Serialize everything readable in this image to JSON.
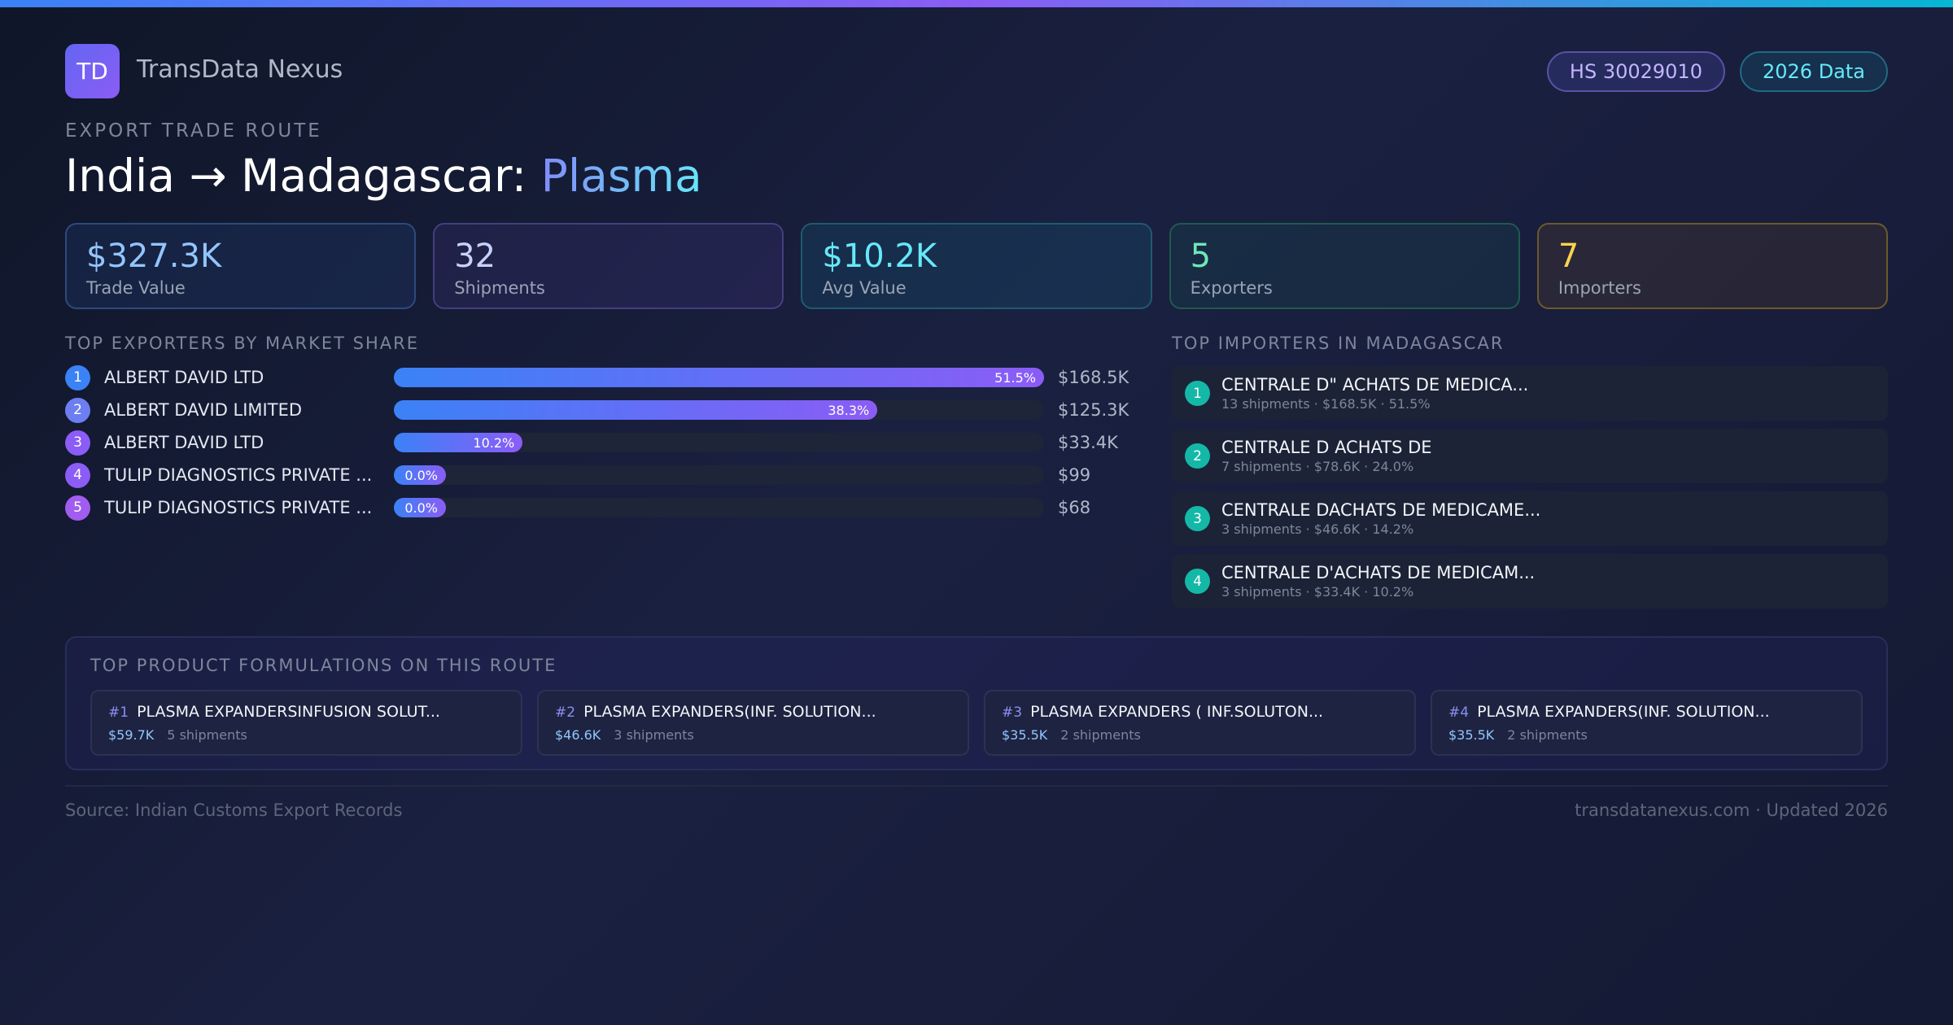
{
  "header": {
    "logo": "TD",
    "brand": "TransData Nexus",
    "badges": [
      "HS 30029010",
      "2026 Data"
    ]
  },
  "route": {
    "eyebrow": "EXPORT TRADE ROUTE",
    "title": "India → Madagascar:",
    "product": "Plasma"
  },
  "kpis": [
    {
      "value": "$327.3K",
      "label": "Trade Value"
    },
    {
      "value": "32",
      "label": "Shipments"
    },
    {
      "value": "$10.2K",
      "label": "Avg Value"
    },
    {
      "value": "5",
      "label": "Exporters"
    },
    {
      "value": "7",
      "label": "Importers"
    }
  ],
  "exporters": {
    "heading": "TOP EXPORTERS BY MARKET SHARE",
    "rows": [
      {
        "rank": "1",
        "name": "ALBERT DAVID LTD",
        "share": 51.5,
        "share_label": "51.5%",
        "value": "$168.5K"
      },
      {
        "rank": "2",
        "name": "ALBERT DAVID LIMITED",
        "share": 38.3,
        "share_label": "38.3%",
        "value": "$125.3K"
      },
      {
        "rank": "3",
        "name": "ALBERT DAVID LTD",
        "share": 10.2,
        "share_label": "10.2%",
        "value": "$33.4K"
      },
      {
        "rank": "4",
        "name": "TULIP DIAGNOSTICS PRIVATE ...",
        "share": 0.0,
        "share_label": "0.0%",
        "value": "$99"
      },
      {
        "rank": "5",
        "name": "TULIP DIAGNOSTICS PRIVATE ...",
        "share": 0.0,
        "share_label": "0.0%",
        "value": "$68"
      }
    ]
  },
  "importers": {
    "heading": "TOP IMPORTERS IN MADAGASCAR",
    "rows": [
      {
        "rank": "1",
        "name": "CENTRALE D\" ACHATS DE MEDICA...",
        "detail": "13 shipments · $168.5K · 51.5%"
      },
      {
        "rank": "2",
        "name": "CENTRALE D ACHATS DE",
        "detail": "7 shipments · $78.6K · 24.0%"
      },
      {
        "rank": "3",
        "name": "CENTRALE DACHATS DE MEDICAME...",
        "detail": "3 shipments · $46.6K · 14.2%"
      },
      {
        "rank": "4",
        "name": "CENTRALE D'ACHATS DE MEDICAM...",
        "detail": "3 shipments · $33.4K · 10.2%"
      }
    ]
  },
  "formulations": {
    "heading": "TOP PRODUCT FORMULATIONS ON THIS ROUTE",
    "items": [
      {
        "rank": "#1",
        "name": "PLASMA EXPANDERSINFUSION SOLUT...",
        "value": "$59.7K",
        "shipments": "5 shipments"
      },
      {
        "rank": "#2",
        "name": "PLASMA EXPANDERS(INF. SOLUTION...",
        "value": "$46.6K",
        "shipments": "3 shipments"
      },
      {
        "rank": "#3",
        "name": "PLASMA EXPANDERS ( INF.SOLUTON...",
        "value": "$35.5K",
        "shipments": "2 shipments"
      },
      {
        "rank": "#4",
        "name": "PLASMA EXPANDERS(INF. SOLUTION...",
        "value": "$35.5K",
        "shipments": "2 shipments"
      }
    ]
  },
  "footer": {
    "source": "Source: Indian Customs Export Records",
    "site": "transdatanexus.com · Updated 2026"
  }
}
